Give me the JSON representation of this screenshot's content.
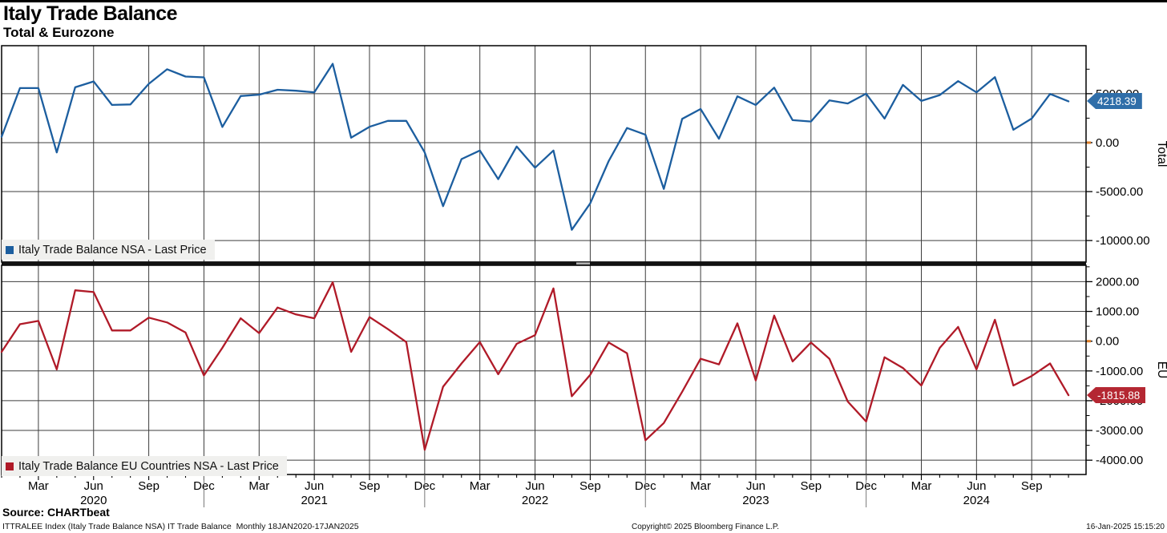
{
  "header": {
    "title": "Italy Trade Balance",
    "subtitle": "Total & Eurozone"
  },
  "panels": [
    {
      "axis_title": "Total",
      "legend": "Italy Trade Balance NSA - Last Price",
      "last_price_label": "4218.39",
      "color": "#1c5e9f",
      "tag_color": "#2f6ea9",
      "ytick_labels": [
        "5000.00",
        "0.00",
        "-5000.00",
        "-10000.00"
      ],
      "yticks": [
        5000,
        0,
        -5000,
        -10000
      ],
      "minor_step": 2500,
      "ylim": [
        -12200,
        9900
      ],
      "zero_marker_color": "#dd7d27"
    },
    {
      "axis_title": "EU",
      "legend": "Italy Trade Balance EU Countries NSA - Last Price",
      "last_price_label": "-1815.88",
      "color": "#b01a28",
      "tag_color": "#b42732",
      "ytick_labels": [
        "2000.00",
        "1000.00",
        "0.00",
        "-1000.00",
        "-2000.00",
        "-3000.00",
        "-4000.00"
      ],
      "yticks": [
        2000,
        1000,
        0,
        -1000,
        -2000,
        -3000,
        -4000
      ],
      "minor_step": 500,
      "ylim": [
        -4480,
        2550
      ],
      "zero_marker_color": "#dd7d27"
    }
  ],
  "x_axis": {
    "quarter_labels": [
      "Mar",
      "Jun",
      "Sep",
      "Dec",
      "Mar",
      "Jun",
      "Sep",
      "Dec",
      "Mar",
      "Jun",
      "Sep",
      "Dec",
      "Mar",
      "Jun",
      "Sep",
      "Dec",
      "Mar",
      "Jun",
      "Sep"
    ],
    "year_labels": [
      "2020",
      "2021",
      "2022",
      "2023",
      "2024"
    ]
  },
  "footer": {
    "source": "Source: CHARTbeat",
    "description": "ITTRALEE Index (Italy Trade Balance NSA) IT Trade Balance  Monthly 18JAN2020-17JAN2025",
    "copyright": "Copyright© 2025 Bloomberg Finance L.P.",
    "timestamp": "16-Jan-2025 15:15:20"
  },
  "chart_data": {
    "type": "line",
    "title": "Italy Trade Balance",
    "subtitle": "Total & Eurozone",
    "frequency": "monthly",
    "x": [
      "2020-01",
      "2020-02",
      "2020-03",
      "2020-04",
      "2020-05",
      "2020-06",
      "2020-07",
      "2020-08",
      "2020-09",
      "2020-10",
      "2020-11",
      "2020-12",
      "2021-01",
      "2021-02",
      "2021-03",
      "2021-04",
      "2021-05",
      "2021-06",
      "2021-07",
      "2021-08",
      "2021-09",
      "2021-10",
      "2021-11",
      "2021-12",
      "2022-01",
      "2022-02",
      "2022-03",
      "2022-04",
      "2022-05",
      "2022-06",
      "2022-07",
      "2022-08",
      "2022-09",
      "2022-10",
      "2022-11",
      "2022-12",
      "2023-01",
      "2023-02",
      "2023-03",
      "2023-04",
      "2023-05",
      "2023-06",
      "2023-07",
      "2023-08",
      "2023-09",
      "2023-10",
      "2023-11",
      "2023-12",
      "2024-01",
      "2024-02",
      "2024-03",
      "2024-04",
      "2024-05",
      "2024-06",
      "2024-07",
      "2024-08",
      "2024-09",
      "2024-10",
      "2024-11"
    ],
    "series": [
      {
        "name": "Italy Trade Balance NSA - Last Price",
        "panel": "Total",
        "last_price": 4218.39,
        "ylim": [
          -12200,
          9900
        ],
        "values": [
          600,
          5570,
          5570,
          -1000,
          5650,
          6250,
          3850,
          3900,
          6000,
          7490,
          6750,
          6670,
          1600,
          4760,
          4900,
          5400,
          5300,
          5140,
          8050,
          500,
          1620,
          2220,
          2220,
          -1000,
          -6490,
          -1680,
          -810,
          -3730,
          -400,
          -2570,
          -810,
          -8900,
          -6200,
          -1890,
          1490,
          810,
          -4730,
          2430,
          3430,
          400,
          4730,
          3840,
          5620,
          2300,
          2160,
          4320,
          4000,
          5000,
          2460,
          5900,
          4260,
          4860,
          6280,
          5140,
          6690,
          1310,
          2460,
          4970,
          4218.39
        ]
      },
      {
        "name": "Italy Trade Balance EU Countries NSA - Last Price",
        "panel": "EU",
        "last_price": -1815.88,
        "ylim": [
          -4480,
          2550
        ],
        "values": [
          -360,
          570,
          680,
          -950,
          1710,
          1650,
          360,
          360,
          790,
          630,
          290,
          -1150,
          -225,
          770,
          270,
          1130,
          900,
          770,
          1980,
          -360,
          810,
          405,
          -30,
          -3650,
          -1530,
          -750,
          -30,
          -1110,
          -90,
          200,
          1775,
          -1850,
          -1130,
          -45,
          -405,
          -3330,
          -2750,
          -1700,
          -590,
          -780,
          600,
          -1320,
          860,
          -680,
          -45,
          -590,
          -2030,
          -2700,
          -540,
          -900,
          -1490,
          -225,
          480,
          -950,
          720,
          -1490,
          -1170,
          -750,
          -1815.88
        ]
      }
    ],
    "grid": true,
    "legend_position": "bottom-left of each panel",
    "y_axis_position": "right"
  }
}
